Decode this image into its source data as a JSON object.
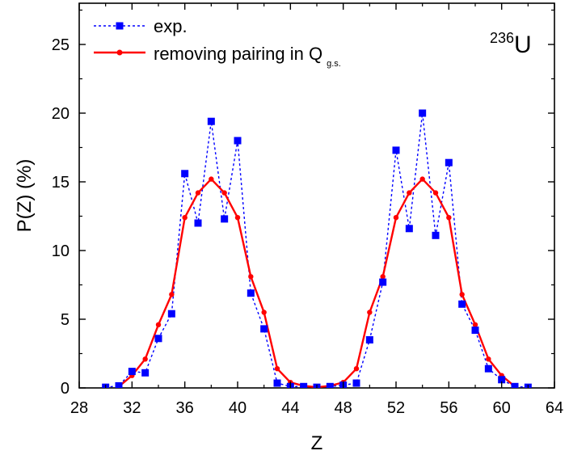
{
  "chart_data": {
    "type": "line",
    "xlabel": "Z",
    "ylabel": "P(Z) (%)",
    "xlim": [
      28,
      64
    ],
    "ylim": [
      0,
      28
    ],
    "xticks": [
      28,
      32,
      36,
      40,
      44,
      48,
      52,
      56,
      60,
      64
    ],
    "yticks": [
      0,
      5,
      10,
      15,
      20,
      25
    ],
    "grid": false,
    "legend_position": "top-left",
    "nucleus_label": {
      "mass": "236",
      "symbol": "U"
    },
    "series": [
      {
        "name": "exp.",
        "color": "#0000ff",
        "line_style": "dotted",
        "marker": "square",
        "x": [
          30,
          31,
          32,
          33,
          34,
          35,
          36,
          37,
          38,
          39,
          40,
          41,
          42,
          43,
          44,
          45,
          46,
          47,
          48,
          49,
          50,
          51,
          52,
          53,
          54,
          55,
          56,
          57,
          58,
          59,
          60,
          61,
          62
        ],
        "y": [
          0.05,
          0.15,
          1.2,
          1.1,
          3.6,
          5.4,
          15.6,
          12.0,
          19.4,
          12.3,
          18.0,
          6.9,
          4.3,
          0.35,
          0.1,
          0.1,
          0.05,
          0.1,
          0.2,
          0.35,
          3.5,
          7.7,
          17.3,
          11.6,
          20.0,
          11.1,
          16.4,
          6.1,
          4.2,
          1.4,
          0.6,
          0.1,
          0.05
        ]
      },
      {
        "name_main": "removing pairing in Q",
        "name_sub": "g.s.",
        "color": "#ff0000",
        "line_style": "solid",
        "marker": "circle",
        "x": [
          31,
          32,
          33,
          34,
          35,
          36,
          37,
          38,
          39,
          40,
          41,
          42,
          43,
          44,
          45,
          46,
          47,
          48,
          49,
          50,
          51,
          52,
          53,
          54,
          55,
          56,
          57,
          58,
          59,
          60,
          61
        ],
        "y": [
          0.1,
          0.9,
          2.1,
          4.6,
          6.8,
          12.4,
          14.2,
          15.2,
          14.2,
          12.4,
          8.1,
          5.5,
          1.4,
          0.4,
          0.15,
          0.05,
          0.15,
          0.4,
          1.4,
          5.5,
          8.1,
          12.4,
          14.2,
          15.2,
          14.2,
          12.4,
          6.8,
          4.6,
          2.1,
          0.9,
          0.1
        ]
      }
    ]
  }
}
